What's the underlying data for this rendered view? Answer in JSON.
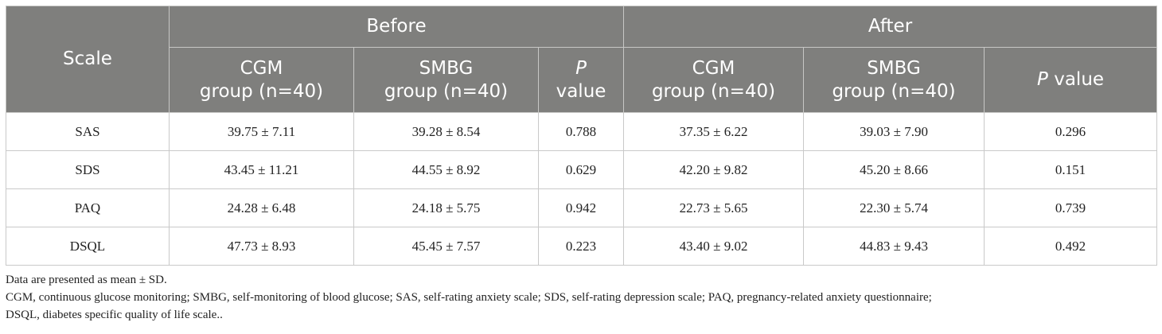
{
  "table": {
    "row_header_label": "Scale",
    "groups": [
      "Before",
      "After"
    ],
    "columns": [
      {
        "line1": "CGM",
        "line2": "group (n=40)"
      },
      {
        "line1": "SMBG",
        "line2": "group (n=40)"
      },
      {
        "p_italic": "P",
        "p_rest": "value"
      },
      {
        "line1": "CGM",
        "line2": "group (n=40)"
      },
      {
        "line1": "SMBG",
        "line2": "group (n=40)"
      },
      {
        "p_italic": "P",
        "p_rest": " value"
      }
    ],
    "rows": [
      {
        "scale": "SAS",
        "cells": [
          "39.75 ± 7.11",
          "39.28 ± 8.54",
          "0.788",
          "37.35 ± 6.22",
          "39.03 ± 7.90",
          "0.296"
        ]
      },
      {
        "scale": "SDS",
        "cells": [
          "43.45 ± 11.21",
          "44.55 ± 8.92",
          "0.629",
          "42.20 ± 9.82",
          "45.20 ± 8.66",
          "0.151"
        ]
      },
      {
        "scale": "PAQ",
        "cells": [
          "24.28 ± 6.48",
          "24.18 ± 5.75",
          "0.942",
          "22.73 ± 5.65",
          "22.30 ± 5.74",
          "0.739"
        ]
      },
      {
        "scale": "DSQL",
        "cells": [
          "47.73 ± 8.93",
          "45.45 ± 7.57",
          "0.223",
          "43.40 ± 9.02",
          "44.83 ± 9.43",
          "0.492"
        ]
      }
    ]
  },
  "footnotes": {
    "line1": "Data are presented as mean ± SD.",
    "line2": "CGM, continuous glucose monitoring; SMBG, self-monitoring of blood glucose; SAS, self-rating anxiety scale; SDS, self-rating depression scale; PAQ, pregnancy-related anxiety questionnaire;",
    "line3": "DSQL, diabetes specific quality of life scale.."
  },
  "colors": {
    "header_bg": "#7f7f7d",
    "header_text": "#ffffff",
    "grid": "#c9c9c9"
  }
}
